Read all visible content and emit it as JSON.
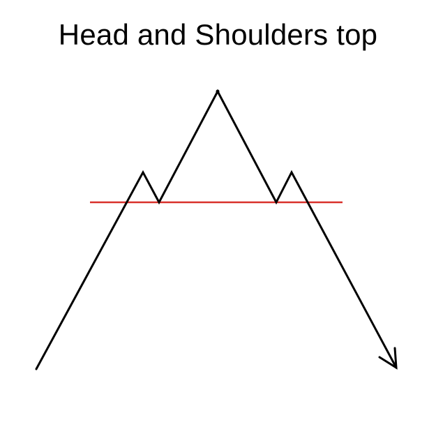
{
  "title": "Head and Shoulders top",
  "colors": {
    "background": "#ffffff",
    "price_line": "#000000",
    "neckline": "#d9302b"
  },
  "icons": {
    "trend_direction": "arrow-down-icon"
  }
}
